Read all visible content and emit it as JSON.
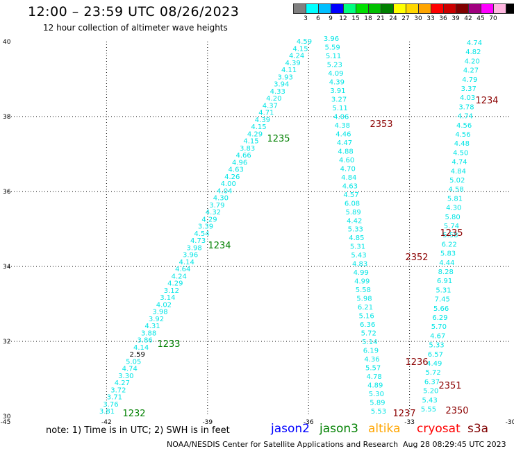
{
  "header": {
    "title": "12:00 – 23:59 UTC 08/26/2023",
    "subtitle": "12 hour collection of altimeter wave heights"
  },
  "legend": {
    "unit": "(ft)",
    "swatches": [
      {
        "color": "#808080",
        "label": ""
      },
      {
        "color": "#00ffff",
        "label": "3"
      },
      {
        "color": "#00bfff",
        "label": "6"
      },
      {
        "color": "#0000ff",
        "label": "9"
      },
      {
        "color": "#00ff7f",
        "label": "12"
      },
      {
        "color": "#00e000",
        "label": "15"
      },
      {
        "color": "#00c000",
        "label": "18"
      },
      {
        "color": "#008000",
        "label": "21"
      },
      {
        "color": "#ffff00",
        "label": "24"
      },
      {
        "color": "#ffd700",
        "label": "27"
      },
      {
        "color": "#ffa500",
        "label": "30"
      },
      {
        "color": "#ff0000",
        "label": "33"
      },
      {
        "color": "#cc0000",
        "label": "36"
      },
      {
        "color": "#800000",
        "label": "39"
      },
      {
        "color": "#a0007f",
        "label": "42"
      },
      {
        "color": "#ff00ff",
        "label": "45"
      },
      {
        "color": "#ffb6e0",
        "label": "70"
      },
      {
        "color": "#000000",
        "label": ""
      }
    ]
  },
  "map": {
    "lon_ticks": [
      "-45",
      "-42",
      "-39",
      "-36",
      "-33",
      "-30"
    ],
    "lat_ticks": [
      "30",
      "32",
      "34",
      "36",
      "38",
      "40"
    ],
    "lon_range": [
      -45,
      -30
    ],
    "lat_range": [
      30,
      40
    ]
  },
  "tracks": {
    "track_a": [
      "3.81",
      "3.76",
      "3.71",
      "3.72",
      "4.27",
      "3.30",
      "4.74",
      "5.05",
      "2.59",
      "4.14",
      "3.86",
      "3.88",
      "4.31",
      "3.92",
      "3.98",
      "4.02",
      "3.14",
      "3.12",
      "4.29",
      "4.24",
      "4.64",
      "4.14",
      "3.96",
      "3.98",
      "4.73",
      "4.54",
      "3.39",
      "4.29",
      "4.32",
      "3.79",
      "4.30",
      "4.04",
      "4.00",
      "4.26",
      "4.63",
      "4.96",
      "4.66",
      "3.83",
      "4.15",
      "4.29",
      "4.15",
      "4.39",
      "4.71",
      "4.37",
      "4.20",
      "4.33",
      "3.94",
      "3.93",
      "4.11",
      "4.39",
      "4.24",
      "4.15",
      "4.59"
    ],
    "track_b": [
      "5.53",
      "5.89",
      "5.30",
      "4.89",
      "4.78",
      "5.57",
      "4.36",
      "6.19",
      "5.14",
      "5.72",
      "6.36",
      "5.16",
      "6.21",
      "5.98",
      "5.58",
      "4.99",
      "4.99",
      "4.83",
      "5.43",
      "5.31",
      "4.85",
      "5.33",
      "4.42",
      "5.89",
      "6.08",
      "4.57",
      "4.63",
      "4.84",
      "4.70",
      "4.60",
      "4.88",
      "4.47",
      "4.46",
      "4.38",
      "4.06",
      "5.11",
      "3.27",
      "3.91",
      "4.39",
      "4.09",
      "5.23",
      "5.11",
      "5.59",
      "3.96"
    ],
    "track_c": [
      "5.55",
      "5.43",
      "5.20",
      "6.37",
      "5.72",
      "4.49",
      "6.57",
      "5.33",
      "4.67",
      "5.70",
      "6.29",
      "5.66",
      "7.45",
      "5.31",
      "6.91",
      "8.28",
      "4.44",
      "5.83",
      "6.22",
      "5.58",
      "5.74",
      "5.80",
      "4.30",
      "5.81",
      "4.58",
      "5.02",
      "4.84",
      "4.74",
      "4.50",
      "4.48",
      "4.56",
      "4.56",
      "4.74",
      "3.78",
      "4.03",
      "3.37",
      "4.79",
      "4.27",
      "4.20",
      "4.82",
      "4.74"
    ]
  },
  "time_labels": [
    {
      "text": "1232",
      "color": "#008000"
    },
    {
      "text": "1233",
      "color": "#008000"
    },
    {
      "text": "1234",
      "color": "#008000"
    },
    {
      "text": "1235",
      "color": "#008000"
    },
    {
      "text": "2353",
      "color": "#8b0000"
    },
    {
      "text": "2352",
      "color": "#8b0000"
    },
    {
      "text": "1236",
      "color": "#8b0000"
    },
    {
      "text": "1237",
      "color": "#8b0000"
    },
    {
      "text": "1234",
      "color": "#8b0000"
    },
    {
      "text": "1235",
      "color": "#8b0000"
    },
    {
      "text": "2351",
      "color": "#8b0000"
    },
    {
      "text": "2350",
      "color": "#8b0000"
    }
  ],
  "footer": {
    "note": "note:  1) Time is in UTC; 2) SWH is in feet",
    "satellites": [
      {
        "name": "jason2",
        "color": "#0000ff"
      },
      {
        "name": "jason3",
        "color": "#008000"
      },
      {
        "name": "altika",
        "color": "#ffa500"
      },
      {
        "name": "cryosat",
        "color": "#ff0000"
      },
      {
        "name": "s3a",
        "color": "#800000"
      }
    ],
    "credit": "NOAA/NESDIS Center for Satellite Applications and Research",
    "timestamp": "Aug 28 08:29:45 UTC 2023"
  }
}
